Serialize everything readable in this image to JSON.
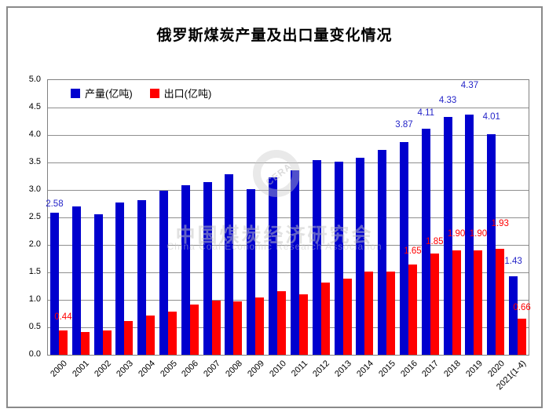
{
  "watermark": {
    "logo_text": "CERA",
    "line1": "中国煤炭经济研究会",
    "line2": "China Coal Economic Research Association"
  },
  "chart_data": {
    "type": "bar",
    "title": "俄罗斯煤炭产量及出口量变化情况",
    "xlabel": "",
    "ylabel": "",
    "unit": "亿吨",
    "grid": true,
    "gridline_color": "#8f8f8f",
    "legend_position": "top-left-inside",
    "ylim": [
      0,
      5
    ],
    "ytick_step": 0.5,
    "y_tick_labels": [
      "0.0",
      "0.5",
      "1.0",
      "1.5",
      "2.0",
      "2.5",
      "3.0",
      "3.5",
      "4.0",
      "4.5",
      "5.0"
    ],
    "categories": [
      "2000",
      "2001",
      "2002",
      "2003",
      "2004",
      "2005",
      "2006",
      "2007",
      "2008",
      "2009",
      "2010",
      "2011",
      "2012",
      "2013",
      "2014",
      "2015",
      "2016",
      "2017",
      "2018",
      "2019",
      "2020",
      "2021(1-4)"
    ],
    "series": [
      {
        "name": "产量(亿吨)",
        "key": "production",
        "color": "#0000CE",
        "label_color": "#2424C8",
        "values": [
          2.58,
          2.7,
          2.56,
          2.77,
          2.82,
          2.99,
          3.09,
          3.14,
          3.29,
          3.01,
          3.23,
          3.36,
          3.55,
          3.52,
          3.58,
          3.73,
          3.87,
          4.11,
          4.33,
          4.37,
          4.01,
          1.43
        ],
        "data_labels": [
          {
            "index": 0,
            "text": "2.58",
            "dy": -10
          },
          {
            "index": 16,
            "text": "3.87",
            "dy": -21
          },
          {
            "index": 17,
            "text": "4.11",
            "dy": -19
          },
          {
            "index": 18,
            "text": "4.33",
            "dy": -20
          },
          {
            "index": 19,
            "text": "4.37",
            "dy": -36
          },
          {
            "index": 20,
            "text": "4.01",
            "dy": -21
          },
          {
            "index": 21,
            "text": "1.43",
            "dy": -18
          }
        ]
      },
      {
        "name": "出口(亿吨)",
        "key": "export",
        "color": "#FF0000",
        "label_color": "#FF0000",
        "values": [
          0.44,
          0.41,
          0.44,
          0.61,
          0.72,
          0.79,
          0.91,
          0.98,
          0.97,
          1.05,
          1.16,
          1.1,
          1.31,
          1.39,
          1.52,
          1.52,
          1.65,
          1.85,
          1.9,
          1.9,
          1.93,
          0.66
        ],
        "data_labels": [
          {
            "index": 0,
            "text": "0.44",
            "dy": -16
          },
          {
            "index": 16,
            "text": "1.65",
            "dy": -16
          },
          {
            "index": 17,
            "text": "1.85",
            "dy": -14
          },
          {
            "index": 18,
            "text": "1.90",
            "dy": -20
          },
          {
            "index": 19,
            "text": "1.90",
            "dy": -20
          },
          {
            "index": 20,
            "text": "1.93",
            "dy": -31
          },
          {
            "index": 21,
            "text": "0.66",
            "dy": -13
          }
        ]
      }
    ]
  }
}
